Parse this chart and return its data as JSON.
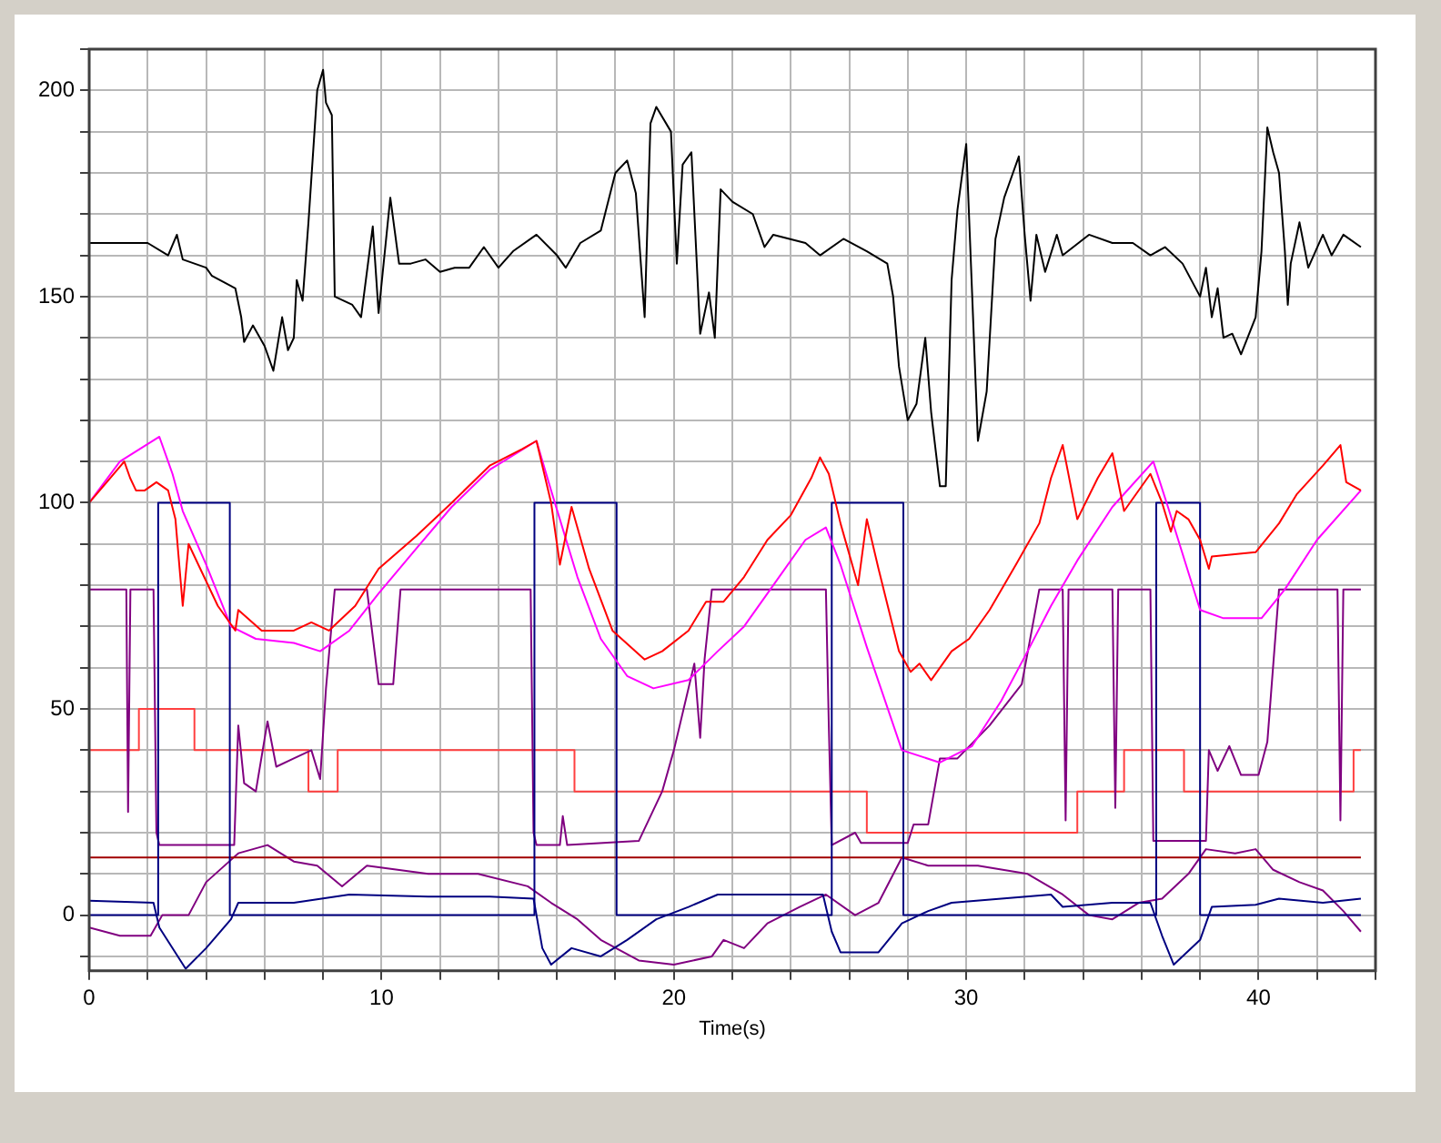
{
  "chart_data": {
    "type": "line",
    "xlabel": "Time(s)",
    "grid": true,
    "xlim": [
      0,
      44
    ],
    "ylim": [
      -13.5,
      210
    ],
    "xticks": [
      0,
      {
        "value": 2,
        "label": null
      },
      {
        "value": 4,
        "label": null
      },
      {
        "value": 6,
        "label": null
      },
      {
        "value": 8,
        "label": null
      },
      10,
      {
        "value": 12,
        "label": null
      },
      {
        "value": 14,
        "label": null
      },
      {
        "value": 16,
        "label": null
      },
      {
        "value": 18,
        "label": null
      },
      20,
      {
        "value": 22,
        "label": null
      },
      {
        "value": 24,
        "label": null
      },
      {
        "value": 26,
        "label": null
      },
      {
        "value": 28,
        "label": null
      },
      30,
      {
        "value": 32,
        "label": null
      },
      {
        "value": 34,
        "label": null
      },
      {
        "value": 36,
        "label": null
      },
      {
        "value": 38,
        "label": null
      },
      40,
      {
        "value": 42,
        "label": null
      },
      {
        "value": 44,
        "label": null
      }
    ],
    "yticks": [
      {
        "value": -10,
        "label": null
      },
      0,
      {
        "value": 10,
        "label": null
      },
      {
        "value": 20,
        "label": null
      },
      {
        "value": 30,
        "label": null
      },
      {
        "value": 40,
        "label": null
      },
      50,
      {
        "value": 60,
        "label": null
      },
      {
        "value": 70,
        "label": null
      },
      {
        "value": 80,
        "label": null
      },
      {
        "value": 90,
        "label": null
      },
      100,
      {
        "value": 110,
        "label": null
      },
      {
        "value": 120,
        "label": null
      },
      {
        "value": 130,
        "label": null
      },
      {
        "value": 140,
        "label": null
      },
      150,
      {
        "value": 160,
        "label": null
      },
      {
        "value": 170,
        "label": null
      },
      {
        "value": 180,
        "label": null
      },
      {
        "value": 190,
        "label": null
      },
      200,
      {
        "value": 210,
        "label": null
      }
    ],
    "series": [
      {
        "color": "#000000",
        "x": [
          0,
          2,
          2.7,
          3.0,
          3.2,
          4,
          4.2,
          5,
          5.2,
          5.3,
          5.6,
          6,
          6.3,
          6.6,
          6.8,
          7.0,
          7.1,
          7.3,
          7.5,
          7.8,
          8.0,
          8.1,
          8.3,
          8.4,
          9,
          9.3,
          9.7,
          9.9,
          10.3,
          10.6,
          11,
          11.5,
          12,
          12.5,
          13,
          13.5,
          14,
          14.5,
          15.3,
          16,
          16.3,
          16.8,
          17.5,
          18.0,
          18.4,
          18.7,
          19.0,
          19.2,
          19.4,
          19.9,
          20.1,
          20.3,
          20.6,
          20.9,
          21.2,
          21.4,
          21.6,
          22,
          22.7,
          23.1,
          23.4,
          24.5,
          25,
          25.8,
          26.6,
          27.3,
          27.5,
          27.7,
          28.0,
          28.3,
          28.6,
          28.8,
          29.1,
          29.3,
          29.5,
          29.7,
          30.0,
          30.2,
          30.4,
          30.7,
          31.0,
          31.3,
          31.5,
          31.8,
          32,
          32.2,
          32.4,
          32.7,
          33.1,
          33.3,
          34.2,
          35.0,
          35.7,
          36.3,
          36.8,
          37.4,
          38.0,
          38.2,
          38.4,
          38.6,
          38.8,
          39.1,
          39.4,
          39.9,
          40.1,
          40.3,
          40.5,
          40.7,
          40.9,
          41.0,
          41.1,
          41.4,
          41.7,
          42.2,
          42.5,
          42.9,
          43.5
        ],
        "values": [
          163,
          163,
          160,
          165,
          159,
          157,
          155,
          152,
          145,
          139,
          143,
          138,
          132,
          145,
          137,
          140,
          154,
          149,
          168,
          200,
          205,
          197,
          194,
          150,
          148,
          145,
          167,
          146,
          174,
          158,
          158,
          159,
          156,
          157,
          157,
          162,
          157,
          161,
          165,
          160,
          157,
          163,
          166,
          180,
          183,
          175,
          145,
          192,
          196,
          190,
          158,
          182,
          185,
          141,
          151,
          140,
          176,
          173,
          170,
          162,
          165,
          163,
          160,
          164,
          161,
          158,
          150,
          133,
          120,
          124,
          140,
          122,
          104,
          104,
          154,
          171,
          187,
          151,
          115,
          127,
          164,
          174,
          178,
          184,
          165,
          149,
          165,
          156,
          165,
          160,
          165,
          163,
          163,
          160,
          162,
          158,
          150,
          157,
          145,
          152,
          140,
          141,
          136,
          145,
          161,
          191,
          185,
          180,
          161,
          148,
          158,
          168,
          157,
          165,
          160,
          165,
          162
        ]
      },
      {
        "color": "#ff0000",
        "x": [
          0,
          0.6,
          1.2,
          1.4,
          1.6,
          1.9,
          2.3,
          2.7,
          2.95,
          3.2,
          3.4,
          3.8,
          4.4,
          5.0,
          5.1,
          5.9,
          7.0,
          7.6,
          8.2,
          9.1,
          9.9,
          11.2,
          12.4,
          13.7,
          14.8,
          15.3,
          15.8,
          16.1,
          16.5,
          17.1,
          17.9,
          19.0,
          19.6,
          20.5,
          21.1,
          21.7,
          22.4,
          23.2,
          24.0,
          24.7,
          25.0,
          25.3,
          25.7,
          26.3,
          26.6,
          27.0,
          27.7,
          28.1,
          28.4,
          28.8,
          29.5,
          30.1,
          30.8,
          31.7,
          32.5,
          32.9,
          33.3,
          33.8,
          34.5,
          35.0,
          35.4,
          36.3,
          36.7,
          37.0,
          37.2,
          37.6,
          38.0,
          38.3,
          38.4,
          39.9,
          40.7,
          41.3,
          42.2,
          42.8,
          43.0,
          43.5
        ],
        "values": [
          100,
          105,
          110,
          106,
          103,
          103,
          105,
          103,
          96,
          75,
          90,
          84,
          75,
          69,
          74,
          69,
          69,
          71,
          69,
          75,
          84,
          92,
          100,
          109,
          113,
          115,
          100,
          85,
          99,
          84,
          69,
          62,
          64,
          69,
          76,
          76,
          82,
          91,
          97,
          106,
          111,
          107,
          95,
          80,
          96,
          84,
          64,
          59,
          61,
          57,
          64,
          67,
          74,
          85,
          95,
          106,
          114,
          96,
          106,
          112,
          98,
          107,
          100,
          93,
          98,
          96,
          91,
          84,
          87,
          88,
          95,
          102,
          109,
          114,
          105,
          103
        ]
      },
      {
        "color": "#ff00ff",
        "x": [
          0,
          1.05,
          2.4,
          2.85,
          3.2,
          4.0,
          4.85,
          5.7,
          7.0,
          7.9,
          8.9,
          9.9,
          11.2,
          12.4,
          13.7,
          15.3,
          15.8,
          16.7,
          17.5,
          18.4,
          19.3,
          20.5,
          21.5,
          22.4,
          23.4,
          24.5,
          25.2,
          25.7,
          26.6,
          27.8,
          29.1,
          30.2,
          31.2,
          32.1,
          32.9,
          33.8,
          35.0,
          36.4,
          36.9,
          38.0,
          38.8,
          40.1,
          40.9,
          42.0,
          43.5
        ],
        "values": [
          100,
          110,
          116,
          107,
          98,
          85,
          70,
          67,
          66,
          64,
          69,
          78,
          89,
          99,
          108,
          115,
          103,
          82,
          67,
          58,
          55,
          57,
          64,
          70,
          80,
          91,
          94,
          85,
          65,
          40,
          37,
          41,
          52,
          64,
          75,
          86,
          99,
          110,
          99,
          74,
          72,
          72,
          79,
          91,
          103
        ]
      },
      {
        "color": "#000080",
        "type": "step",
        "x": [
          0,
          2.36,
          4.81,
          15.23,
          18.04,
          25.4,
          27.85,
          36.5,
          38.0,
          43.5
        ],
        "values": [
          0,
          100,
          0,
          100,
          0,
          100,
          0,
          100,
          0,
          0
        ]
      },
      {
        "color": "#800080",
        "x": [
          0,
          1.27,
          1.33,
          1.41,
          2.2,
          2.3,
          2.4,
          4.96,
          5.1,
          5.3,
          5.7,
          6.1,
          6.4,
          7.0,
          7.6,
          7.9,
          8.1,
          8.4,
          9.5,
          9.9,
          10.4,
          10.65,
          15.1,
          15.2,
          15.3,
          16.1,
          16.2,
          16.35,
          18.8,
          19.6,
          20.0,
          20.7,
          20.9,
          21.05,
          21.3,
          25.2,
          25.3,
          25.4,
          26.2,
          26.4,
          28.0,
          28.2,
          28.7,
          29.1,
          29.7,
          30.8,
          31.9,
          32.5,
          33.3,
          33.4,
          33.5,
          35.0,
          35.1,
          35.2,
          36.3,
          36.4,
          38.2,
          38.3,
          38.6,
          39.0,
          39.4,
          40.0,
          40.3,
          40.7,
          42.7,
          42.8,
          42.9,
          43.5
        ],
        "values": [
          79,
          79,
          25,
          79,
          79,
          20,
          17,
          17,
          46,
          32,
          30,
          47,
          36,
          38,
          40,
          33,
          55,
          79,
          79,
          56,
          56,
          79,
          79,
          20,
          17,
          17,
          24,
          17,
          18,
          30,
          40,
          61,
          43,
          62,
          79,
          79,
          46,
          17,
          20,
          17.5,
          17.5,
          22,
          22,
          38,
          38,
          46,
          56,
          79,
          79,
          23,
          79,
          79,
          26,
          79,
          79,
          18,
          18,
          40,
          35,
          41,
          34,
          34,
          42,
          79,
          79,
          23,
          79,
          79
        ]
      },
      {
        "color": "#ff4040",
        "type": "step",
        "x": [
          0,
          1.7,
          3.6,
          7.5,
          8.5,
          16.6,
          26.6,
          33.8,
          35.4,
          37.45,
          43.25,
          43.5
        ],
        "values": [
          40,
          50,
          40,
          30,
          40,
          30,
          20,
          30,
          40,
          30,
          40,
          40
        ]
      },
      {
        "color": "#a00000",
        "x": [
          0,
          43.5
        ],
        "values": [
          14,
          14
        ]
      },
      {
        "color": "#000080",
        "x": [
          0,
          2.2,
          2.4,
          3.3,
          4.0,
          4.85,
          5.1,
          7.0,
          8.9,
          11.6,
          13.7,
          15.2,
          15.5,
          15.8,
          16.5,
          17.5,
          18.4,
          19.4,
          20.5,
          21.5,
          22.4,
          25.1,
          25.4,
          25.7,
          27.0,
          27.8,
          28.7,
          29.5,
          31.2,
          32.9,
          33.3,
          35.0,
          36.3,
          36.7,
          37.1,
          38.0,
          38.4,
          39.9,
          40.7,
          42.2,
          43.5
        ],
        "values": [
          3.5,
          3,
          -3,
          -13,
          -8,
          -1,
          3,
          3,
          5,
          4.5,
          4.5,
          4,
          -8,
          -12,
          -8,
          -10,
          -6,
          -1,
          2,
          5,
          5,
          5,
          -4,
          -9,
          -9,
          -2,
          1,
          3,
          4,
          5,
          2,
          3,
          3,
          -5,
          -12,
          -6,
          2,
          2.5,
          4,
          3,
          4
        ]
      },
      {
        "color": "#800080",
        "x": [
          0,
          1.05,
          2.1,
          2.5,
          3.4,
          4.0,
          5.1,
          6.1,
          7.0,
          7.8,
          8.65,
          9.5,
          11.6,
          13.3,
          15.0,
          15.8,
          16.7,
          17.5,
          18.8,
          20.0,
          21.3,
          21.7,
          22.4,
          23.2,
          24.3,
          25.2,
          26.2,
          27.0,
          27.8,
          28.7,
          30.4,
          32.1,
          33.3,
          34.2,
          35.0,
          35.9,
          36.7,
          37.6,
          38.2,
          39.2,
          39.9,
          40.5,
          41.4,
          42.2,
          42.9,
          43.5
        ],
        "values": [
          -3,
          -5,
          -5,
          0,
          0,
          8,
          15,
          17,
          13,
          12,
          7,
          12,
          10,
          10,
          7,
          3,
          -1,
          -6,
          -11,
          -12,
          -10,
          -6,
          -8,
          -2,
          2,
          5,
          0,
          3,
          14,
          12,
          12,
          10,
          5,
          0,
          -1,
          3,
          4,
          10,
          16,
          15,
          16,
          11,
          8,
          6,
          1,
          -4
        ]
      }
    ]
  }
}
